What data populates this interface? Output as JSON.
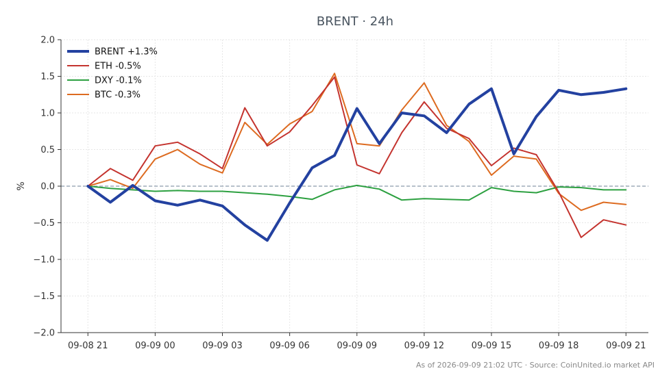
{
  "chart_data": {
    "type": "line",
    "title": "BRENT · 24h",
    "ylabel": "%",
    "xlabel": "",
    "ylim": [
      -2.0,
      2.0
    ],
    "yticks": [
      -2.0,
      -1.5,
      -1.0,
      -0.5,
      0.0,
      0.5,
      1.0,
      1.5,
      2.0
    ],
    "ytick_labels": [
      "−2.0",
      "−1.5",
      "−1.0",
      "−0.5",
      "0.0",
      "0.5",
      "1.0",
      "1.5",
      "2.0"
    ],
    "xlim": [
      -1.2,
      25.0
    ],
    "xticks": [
      0,
      3,
      6,
      9,
      12,
      15,
      18,
      21,
      24
    ],
    "xtick_labels": [
      "09-08 21",
      "09-09 00",
      "09-09 03",
      "09-09 06",
      "09-09 09",
      "09-09 12",
      "09-09 15",
      "09-09 18",
      "09-09 21"
    ],
    "zero_line": true,
    "grid": true,
    "legend_position": "top-left",
    "series": [
      {
        "name": "BRENT +1.3%",
        "color": "#2341a0",
        "width": 4,
        "values": [
          0.0,
          -0.22,
          0.01,
          -0.2,
          -0.26,
          -0.19,
          -0.27,
          -0.53,
          -0.74,
          -0.23,
          0.25,
          0.42,
          1.06,
          0.58,
          1.0,
          0.96,
          0.73,
          1.12,
          1.33,
          0.44,
          0.95,
          1.31,
          1.25,
          1.28,
          1.33
        ]
      },
      {
        "name": "ETH -0.5%",
        "color": "#c4332e",
        "width": 2,
        "values": [
          0.0,
          0.24,
          0.08,
          0.55,
          0.6,
          0.44,
          0.24,
          1.07,
          0.55,
          0.74,
          1.1,
          1.49,
          0.29,
          0.17,
          0.73,
          1.15,
          0.79,
          0.65,
          0.28,
          0.52,
          0.43,
          -0.08,
          -0.7,
          -0.46,
          -0.53
        ]
      },
      {
        "name": "DXY -0.1%",
        "color": "#2ca040",
        "width": 2,
        "values": [
          0.0,
          -0.03,
          -0.05,
          -0.07,
          -0.06,
          -0.07,
          -0.07,
          -0.09,
          -0.11,
          -0.14,
          -0.18,
          -0.05,
          0.01,
          -0.04,
          -0.19,
          -0.17,
          -0.18,
          -0.19,
          -0.02,
          -0.07,
          -0.09,
          -0.01,
          -0.02,
          -0.05,
          -0.05
        ]
      },
      {
        "name": "BTC -0.3%",
        "color": "#dd6b20",
        "width": 2,
        "values": [
          0.0,
          0.09,
          -0.03,
          0.37,
          0.5,
          0.3,
          0.18,
          0.87,
          0.57,
          0.85,
          1.02,
          1.54,
          0.58,
          0.55,
          1.04,
          1.41,
          0.83,
          0.61,
          0.15,
          0.41,
          0.37,
          -0.1,
          -0.33,
          -0.22,
          -0.25
        ]
      }
    ]
  },
  "footer": "As of 2026-09-09 21:02 UTC · Source: CoinUnited.io market API"
}
